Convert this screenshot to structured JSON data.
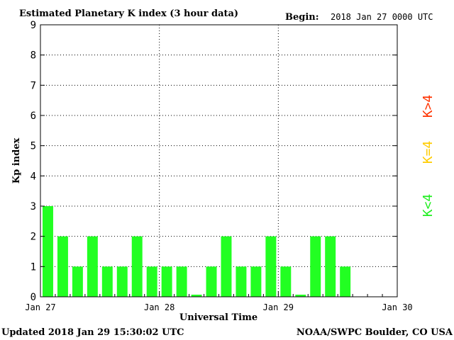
{
  "chart_data": {
    "type": "bar",
    "title": "Estimated Planetary K index (3 hour data)",
    "begin_label": "Begin:",
    "begin_value": "2018 Jan 27 0000 UTC",
    "xlabel": "Universal Time",
    "ylabel": "Kp index",
    "ylim": [
      0,
      9
    ],
    "yticks": [
      "0",
      "1",
      "2",
      "3",
      "4",
      "5",
      "6",
      "7",
      "8",
      "9"
    ],
    "xticks": [
      "Jan 27",
      "Jan 28",
      "Jan 29",
      "Jan 30"
    ],
    "grid": true,
    "bar_width_hours": 3,
    "values": [
      3,
      2,
      1,
      2,
      1,
      1,
      2,
      1,
      1,
      1,
      0.07,
      1,
      2,
      1,
      1,
      2,
      1,
      0.07,
      2,
      2,
      1
    ],
    "bar_color": "#22ff22",
    "legend": [
      {
        "label": "K<4",
        "color": "#22ee22"
      },
      {
        "label": "K=4",
        "color": "#ffcc00"
      },
      {
        "label": "K>4",
        "color": "#ff3300"
      }
    ]
  },
  "footer": {
    "updated": "Updated 2018 Jan 29 15:30:02 UTC",
    "source": "NOAA/SWPC Boulder, CO USA"
  }
}
